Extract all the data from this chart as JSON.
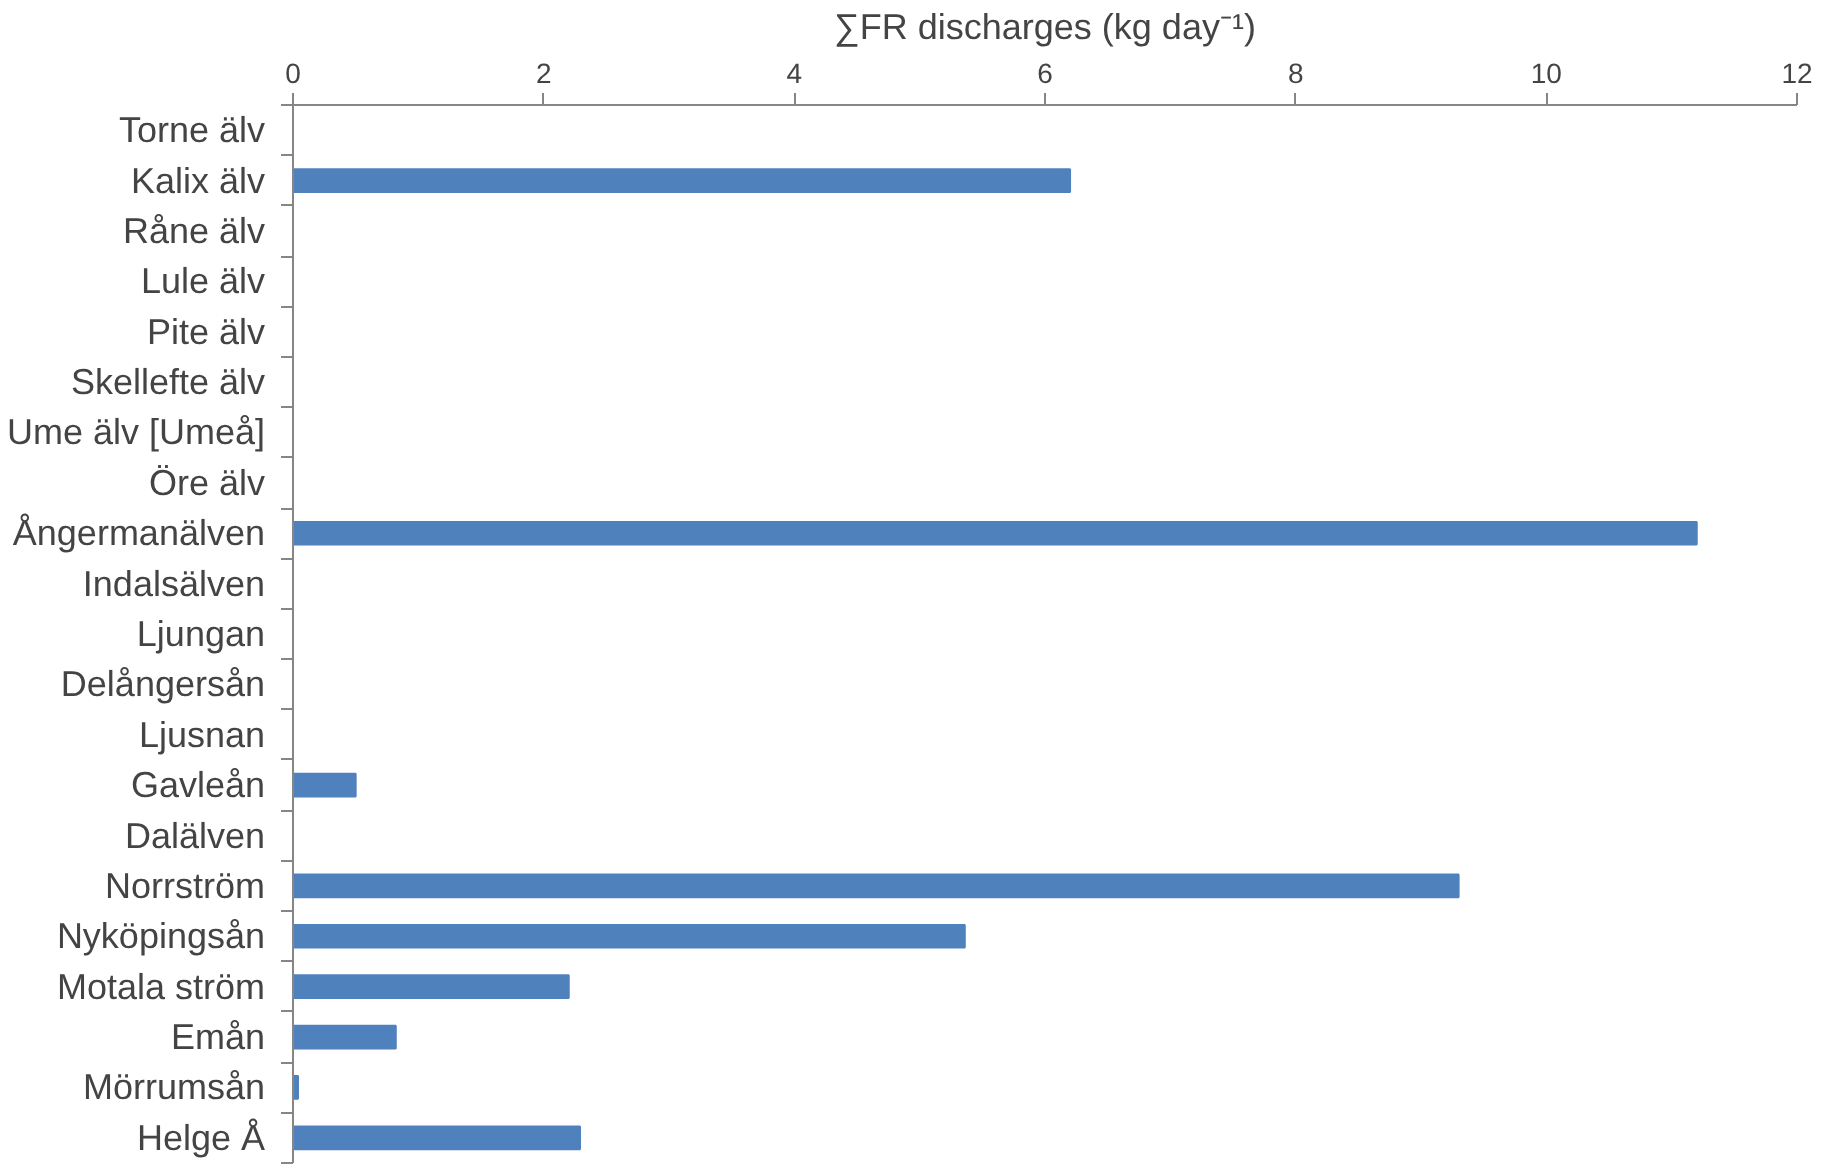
{
  "chart_data": {
    "type": "bar",
    "orientation": "horizontal",
    "xlabel": "∑FR discharges (kg day⁻¹)",
    "categories": [
      "Torne älv",
      "Kalix älv",
      "Råne älv",
      "Lule älv",
      "Pite älv",
      "Skellefte älv",
      "Ume älv [Umeå]",
      "Öre älv",
      "Ångermanälven",
      "Indalsälven",
      "Ljungan",
      "Delångersån",
      "Ljusnan",
      "Gavleån",
      "Dalälven",
      "Norrström",
      "Nyköpingsån",
      "Motala ström",
      "Emån",
      "Mörrumsån",
      "Helge Å"
    ],
    "values": [
      null,
      6.2,
      null,
      null,
      null,
      null,
      null,
      null,
      11.2,
      null,
      null,
      null,
      null,
      0.5,
      null,
      9.3,
      5.36,
      2.2,
      0.82,
      0.04,
      2.29
    ],
    "color": "#4f81bd",
    "xlim": [
      0,
      12
    ],
    "xticks": [
      0,
      2,
      4,
      6,
      8,
      10,
      12
    ],
    "grid": false
  }
}
